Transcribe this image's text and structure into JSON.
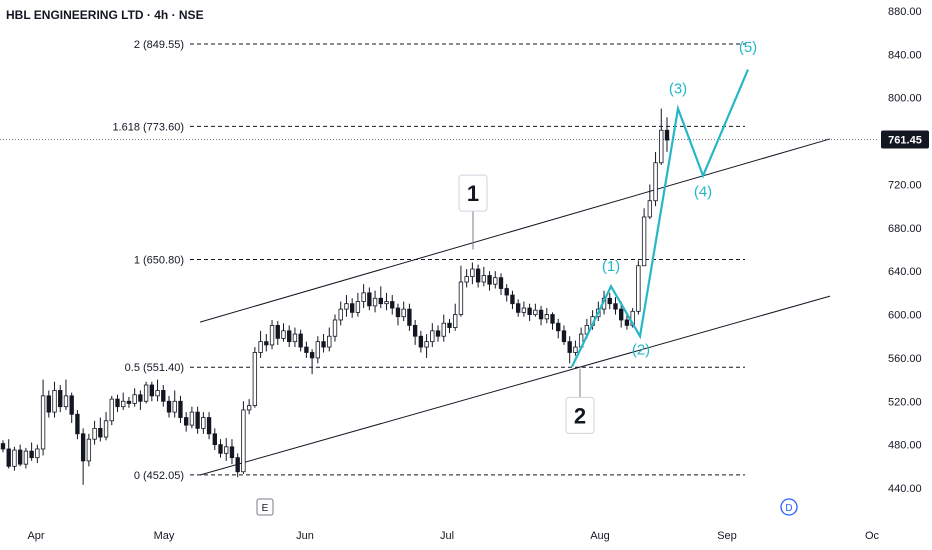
{
  "colors": {
    "candle": "#131722",
    "channel": "#131722",
    "wave": "#26b7c7",
    "fib": "#131722",
    "price_tag": "#131722",
    "dividend_badge": "#2962ff"
  },
  "chart_data": {
    "type": "candlestick",
    "title": "HBL ENGINEERING LTD · 4h · NSE",
    "ylim": [
      430,
      890
    ],
    "y_ticks": [
      "880.00",
      "840.00",
      "800.00",
      "760.00",
      "720.00",
      "680.00",
      "640.00",
      "600.00",
      "560.00",
      "520.00",
      "480.00",
      "440.00"
    ],
    "y_tick_values": [
      880,
      840,
      800,
      760,
      720,
      680,
      640,
      600,
      560,
      520,
      480,
      440
    ],
    "x_ticks": [
      "Apr",
      "May",
      "Jun",
      "Jul",
      "Aug",
      "Sep",
      "Oc"
    ],
    "last_price": "761.45",
    "last_price_value": 761.45,
    "fib_levels": [
      {
        "label": "2 (849.55)",
        "value": 849.55
      },
      {
        "label": "1.618 (773.60)",
        "value": 773.6
      },
      {
        "label": "1 (650.80)",
        "value": 650.8
      },
      {
        "label": "0.5 (551.40)",
        "value": 551.4
      },
      {
        "label": "0 (452.05)",
        "value": 452.05
      }
    ],
    "channel": {
      "upper": [
        {
          "bar": 200,
          "price": 593
        },
        {
          "bar": 830,
          "price": 762
        }
      ],
      "lower": [
        {
          "bar": 200,
          "price": 452
        },
        {
          "bar": 830,
          "price": 617
        }
      ]
    },
    "wave_path": [
      {
        "bar": 572,
        "price": 552
      },
      {
        "bar": 611,
        "price": 626
      },
      {
        "bar": 640,
        "price": 580
      },
      {
        "bar": 678,
        "price": 790
      },
      {
        "bar": 703,
        "price": 728
      },
      {
        "bar": 748,
        "price": 826
      }
    ],
    "wave_labels": [
      {
        "text": "(1)",
        "bar": 611,
        "price": 640
      },
      {
        "text": "(2)",
        "bar": 641,
        "price": 563
      },
      {
        "text": "(3)",
        "bar": 678,
        "price": 804
      },
      {
        "text": "(4)",
        "bar": 703,
        "price": 709
      },
      {
        "text": "(5)",
        "bar": 748,
        "price": 842
      }
    ],
    "major_labels": [
      {
        "text": "1",
        "bar": 473,
        "price": 712,
        "anchor": {
          "bar": 473,
          "price": 660
        }
      },
      {
        "text": "2",
        "bar": 580,
        "price": 507,
        "anchor": {
          "bar": 580,
          "price": 550
        }
      }
    ],
    "badges": [
      {
        "text": "E",
        "bar": 265
      },
      {
        "text": "D",
        "bar": 789
      }
    ],
    "candles": [
      [
        481,
        476,
        484,
        473
      ],
      [
        476,
        460,
        485,
        458
      ],
      [
        460,
        475,
        478,
        456
      ],
      [
        475,
        462,
        480,
        460
      ],
      [
        462,
        474,
        477,
        458
      ],
      [
        474,
        468,
        482,
        465
      ],
      [
        468,
        476,
        480,
        463
      ],
      [
        476,
        525,
        540,
        470
      ],
      [
        525,
        510,
        530,
        505
      ],
      [
        510,
        530,
        538,
        505
      ],
      [
        530,
        515,
        535,
        510
      ],
      [
        515,
        525,
        540,
        512
      ],
      [
        525,
        508,
        528,
        500
      ],
      [
        508,
        490,
        512,
        485
      ],
      [
        490,
        465,
        495,
        443
      ],
      [
        465,
        485,
        490,
        460
      ],
      [
        485,
        495,
        502,
        480
      ],
      [
        495,
        487,
        505,
        483
      ],
      [
        487,
        502,
        510,
        484
      ],
      [
        502,
        522,
        525,
        498
      ],
      [
        522,
        515,
        526,
        510
      ],
      [
        515,
        520,
        528,
        512
      ],
      [
        520,
        518,
        524,
        514
      ],
      [
        518,
        526,
        532,
        515
      ],
      [
        526,
        520,
        530,
        512
      ],
      [
        520,
        535,
        538,
        518
      ],
      [
        535,
        525,
        538,
        520
      ],
      [
        525,
        530,
        540,
        520
      ],
      [
        530,
        520,
        535,
        515
      ],
      [
        520,
        510,
        525,
        505
      ],
      [
        510,
        520,
        530,
        505
      ],
      [
        520,
        505,
        525,
        500
      ],
      [
        505,
        498,
        510,
        492
      ],
      [
        498,
        510,
        515,
        495
      ],
      [
        510,
        495,
        515,
        490
      ],
      [
        495,
        505,
        510,
        490
      ],
      [
        505,
        490,
        510,
        485
      ],
      [
        490,
        480,
        495,
        475
      ],
      [
        480,
        472,
        485,
        468
      ],
      [
        472,
        478,
        486,
        465
      ],
      [
        478,
        468,
        485,
        462
      ],
      [
        468,
        455,
        472,
        450
      ],
      [
        455,
        512,
        520,
        453
      ],
      [
        512,
        516,
        522,
        508
      ],
      [
        516,
        565,
        570,
        514
      ],
      [
        565,
        575,
        585,
        560
      ],
      [
        575,
        572,
        582,
        566
      ],
      [
        572,
        590,
        595,
        568
      ],
      [
        590,
        578,
        594,
        572
      ],
      [
        578,
        585,
        592,
        575
      ],
      [
        585,
        575,
        590,
        570
      ],
      [
        575,
        582,
        588,
        570
      ],
      [
        582,
        570,
        586,
        566
      ],
      [
        570,
        565,
        575,
        560
      ],
      [
        565,
        560,
        568,
        545
      ],
      [
        560,
        575,
        580,
        555
      ],
      [
        575,
        570,
        582,
        565
      ],
      [
        570,
        580,
        588,
        566
      ],
      [
        580,
        595,
        600,
        575
      ],
      [
        595,
        605,
        612,
        590
      ],
      [
        605,
        610,
        618,
        598
      ],
      [
        610,
        602,
        615,
        597
      ],
      [
        602,
        612,
        620,
        598
      ],
      [
        612,
        620,
        628,
        606
      ],
      [
        620,
        608,
        625,
        604
      ],
      [
        608,
        615,
        622,
        602
      ],
      [
        615,
        610,
        626,
        606
      ],
      [
        610,
        612,
        620,
        604
      ],
      [
        612,
        606,
        618,
        600
      ],
      [
        606,
        598,
        610,
        590
      ],
      [
        598,
        605,
        612,
        594
      ],
      [
        605,
        590,
        610,
        585
      ],
      [
        590,
        580,
        595,
        572
      ],
      [
        580,
        570,
        585,
        565
      ],
      [
        570,
        575,
        582,
        560
      ],
      [
        575,
        585,
        592,
        570
      ],
      [
        585,
        580,
        590,
        575
      ],
      [
        580,
        592,
        600,
        575
      ],
      [
        592,
        588,
        596,
        583
      ],
      [
        588,
        600,
        610,
        585
      ],
      [
        600,
        630,
        645,
        598
      ],
      [
        630,
        635,
        642,
        625
      ],
      [
        635,
        642,
        648,
        628
      ],
      [
        642,
        630,
        646,
        625
      ],
      [
        630,
        636,
        644,
        626
      ],
      [
        636,
        628,
        640,
        622
      ],
      [
        628,
        634,
        640,
        624
      ],
      [
        634,
        624,
        638,
        618
      ],
      [
        624,
        618,
        628,
        612
      ],
      [
        618,
        610,
        622,
        605
      ],
      [
        610,
        602,
        614,
        598
      ],
      [
        602,
        606,
        612,
        598
      ],
      [
        606,
        600,
        610,
        594
      ],
      [
        600,
        604,
        610,
        598
      ],
      [
        604,
        596,
        608,
        590
      ],
      [
        596,
        600,
        606,
        592
      ],
      [
        600,
        592,
        602,
        586
      ],
      [
        592,
        585,
        596,
        578
      ],
      [
        585,
        575,
        590,
        572
      ],
      [
        575,
        565,
        580,
        555
      ],
      [
        565,
        570,
        576,
        562
      ],
      [
        570,
        582,
        588,
        568
      ],
      [
        582,
        590,
        596,
        578
      ],
      [
        590,
        598,
        604,
        586
      ],
      [
        598,
        605,
        612,
        594
      ],
      [
        605,
        615,
        622,
        600
      ],
      [
        615,
        610,
        620,
        605
      ],
      [
        610,
        605,
        616,
        600
      ],
      [
        605,
        595,
        612,
        588
      ],
      [
        595,
        590,
        602,
        586
      ],
      [
        590,
        603,
        606,
        588
      ],
      [
        603,
        645,
        650,
        600
      ],
      [
        645,
        690,
        698,
        645
      ],
      [
        690,
        705,
        720,
        688
      ],
      [
        705,
        740,
        750,
        700
      ],
      [
        740,
        770,
        790,
        738
      ],
      [
        770,
        761,
        782,
        750
      ]
    ]
  }
}
